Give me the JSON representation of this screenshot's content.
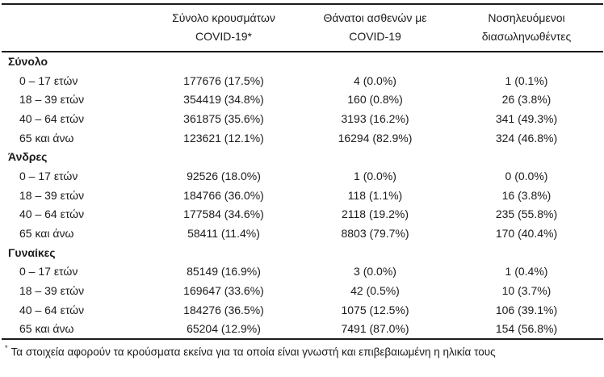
{
  "colors": {
    "background": "#ffffff",
    "text": "#1b1b1b",
    "rule": "#1c1c1c"
  },
  "table": {
    "headers": [
      {
        "line1": "Σύνολο κρουσμάτων",
        "line2": "COVID-19*"
      },
      {
        "line1": "Θάνατοι ασθενών με",
        "line2": "COVID-19"
      },
      {
        "line1": "Νοσηλευόμενοι",
        "line2": "διασωληνωθέντες"
      }
    ],
    "sections": [
      {
        "label": "Σύνολο",
        "rows": [
          {
            "label": "0 – 17 ετών",
            "cases": "177676 (17.5%)",
            "deaths": "4 (0.0%)",
            "intubated": "1 (0.1%)"
          },
          {
            "label": "18 – 39 ετών",
            "cases": "354419 (34.8%)",
            "deaths": "160 (0.8%)",
            "intubated": "26 (3.8%)"
          },
          {
            "label": "40 – 64 ετών",
            "cases": "361875 (35.6%)",
            "deaths": "3193 (16.2%)",
            "intubated": "341 (49.3%)"
          },
          {
            "label": "65 και άνω",
            "cases": "123621 (12.1%)",
            "deaths": "16294 (82.9%)",
            "intubated": "324 (46.8%)"
          }
        ]
      },
      {
        "label": "Άνδρες",
        "rows": [
          {
            "label": "0 – 17 ετών",
            "cases": "92526 (18.0%)",
            "deaths": "1 (0.0%)",
            "intubated": "0 (0.0%)"
          },
          {
            "label": "18 – 39 ετών",
            "cases": "184766 (36.0%)",
            "deaths": "118 (1.1%)",
            "intubated": "16 (3.8%)"
          },
          {
            "label": "40 – 64 ετών",
            "cases": "177584 (34.6%)",
            "deaths": "2118 (19.2%)",
            "intubated": "235 (55.8%)"
          },
          {
            "label": "65 και άνω",
            "cases": "58411 (11.4%)",
            "deaths": "8803 (79.7%)",
            "intubated": "170 (40.4%)"
          }
        ]
      },
      {
        "label": "Γυναίκες",
        "rows": [
          {
            "label": "0 – 17 ετών",
            "cases": "85149 (16.9%)",
            "deaths": "3 (0.0%)",
            "intubated": "1 (0.4%)"
          },
          {
            "label": "18 – 39 ετών",
            "cases": "169647 (33.6%)",
            "deaths": "42 (0.5%)",
            "intubated": "10 (3.7%)"
          },
          {
            "label": "40 – 64 ετών",
            "cases": "184276 (36.5%)",
            "deaths": "1075 (12.5%)",
            "intubated": "106 (39.1%)"
          },
          {
            "label": "65 και άνω",
            "cases": "65204 (12.9%)",
            "deaths": "7491 (87.0%)",
            "intubated": "154 (56.8%)"
          }
        ]
      }
    ],
    "footnote": {
      "marker": "*",
      "text": "Τα στοιχεία αφορούν τα κρούσματα εκείνα για τα οποία είναι γνωστή και επιβεβαιωμένη η ηλικία τους"
    }
  }
}
